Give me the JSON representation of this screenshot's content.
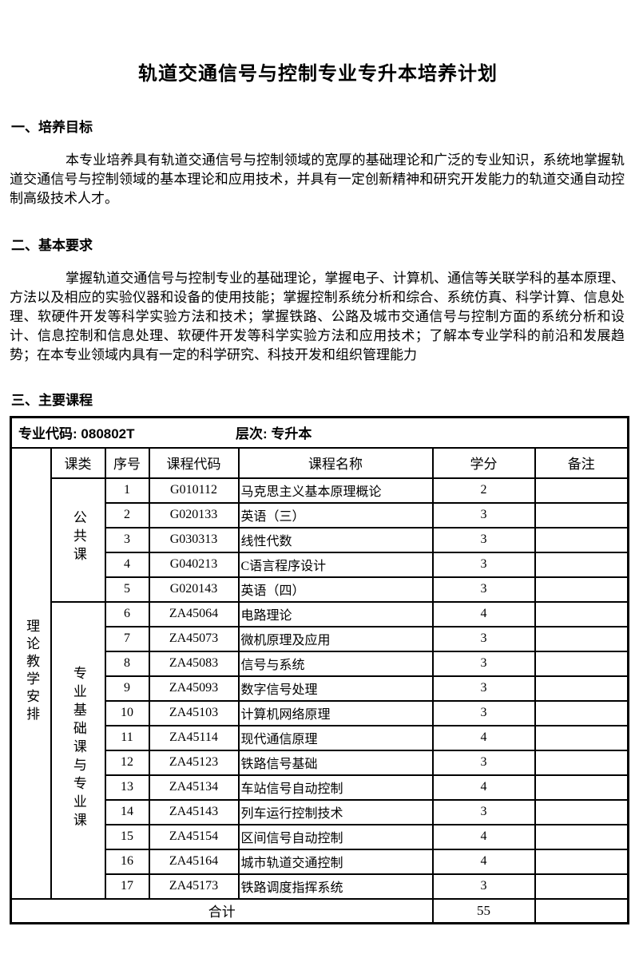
{
  "title": "轨道交通信号与控制专业专升本培养计划",
  "sections": {
    "s1": {
      "heading": "一、培养目标",
      "body": "本专业培养具有轨道交通信号与控制领域的宽厚的基础理论和广泛的专业知识，系统地掌握轨道交通信号与控制领域的基本理论和应用技术，并具有一定创新精神和研究开发能力的轨道交通自动控制高级技术人才。"
    },
    "s2": {
      "heading": "二、基本要求",
      "body": "掌握轨道交通信号与控制专业的基础理论，掌握电子、计算机、通信等关联学科的基本原理、方法以及相应的实验仪器和设备的使用技能；掌握控制系统分析和综合、系统仿真、科学计算、信息处理、软硬件开发等科学实验方法和技术；掌握铁路、公路及城市交通信号与控制方面的系统分析和设计、信息控制和信息处理、软硬件开发等科学实验方法和应用技术；了解本专业学科的前沿和发展趋势；在本专业领域内具有一定的科学研究、科技开发和组织管理能力"
    },
    "s3": {
      "heading": "三、主要课程"
    }
  },
  "table": {
    "meta": {
      "code_label": "专业代码:",
      "code_value": "080802T",
      "level_label": "层次:",
      "level_value": "专升本"
    },
    "side_label": "理论教学安排",
    "headers": [
      "课类",
      "序号",
      "课程代码",
      "课程名称",
      "学分",
      "备注"
    ],
    "categories": [
      {
        "label": "公共课"
      },
      {
        "label": "专业基础课与专业课"
      }
    ],
    "rows": [
      {
        "seq": "1",
        "code": "G010112",
        "name": "马克思主义基本原理概论",
        "credits": "2",
        "remark": ""
      },
      {
        "seq": "2",
        "code": "G020133",
        "name": "英语（三）",
        "credits": "3",
        "remark": ""
      },
      {
        "seq": "3",
        "code": "G030313",
        "name": "线性代数",
        "credits": "3",
        "remark": ""
      },
      {
        "seq": "4",
        "code": "G040213",
        "name": "C语言程序设计",
        "credits": "3",
        "remark": ""
      },
      {
        "seq": "5",
        "code": "G020143",
        "name": "英语（四）",
        "credits": "3",
        "remark": ""
      },
      {
        "seq": "6",
        "code": "ZA45064",
        "name": "电路理论",
        "credits": "4",
        "remark": ""
      },
      {
        "seq": "7",
        "code": "ZA45073",
        "name": "微机原理及应用",
        "credits": "3",
        "remark": ""
      },
      {
        "seq": "8",
        "code": "ZA45083",
        "name": "信号与系统",
        "credits": "3",
        "remark": ""
      },
      {
        "seq": "9",
        "code": "ZA45093",
        "name": "数字信号处理",
        "credits": "3",
        "remark": ""
      },
      {
        "seq": "10",
        "code": "ZA45103",
        "name": "计算机网络原理",
        "credits": "3",
        "remark": ""
      },
      {
        "seq": "11",
        "code": "ZA45114",
        "name": "现代通信原理",
        "credits": "4",
        "remark": ""
      },
      {
        "seq": "12",
        "code": "ZA45123",
        "name": "铁路信号基础",
        "credits": "3",
        "remark": ""
      },
      {
        "seq": "13",
        "code": "ZA45134",
        "name": "车站信号自动控制",
        "credits": "4",
        "remark": ""
      },
      {
        "seq": "14",
        "code": "ZA45143",
        "name": "列车运行控制技术",
        "credits": "3",
        "remark": ""
      },
      {
        "seq": "15",
        "code": "ZA45154",
        "name": "区间信号自动控制",
        "credits": "4",
        "remark": ""
      },
      {
        "seq": "16",
        "code": "ZA45164",
        "name": "城市轨道交通控制",
        "credits": "4",
        "remark": ""
      },
      {
        "seq": "17",
        "code": "ZA45173",
        "name": "铁路调度指挥系统",
        "credits": "3",
        "remark": ""
      }
    ],
    "total_label": "合计",
    "total_credits": "55"
  }
}
